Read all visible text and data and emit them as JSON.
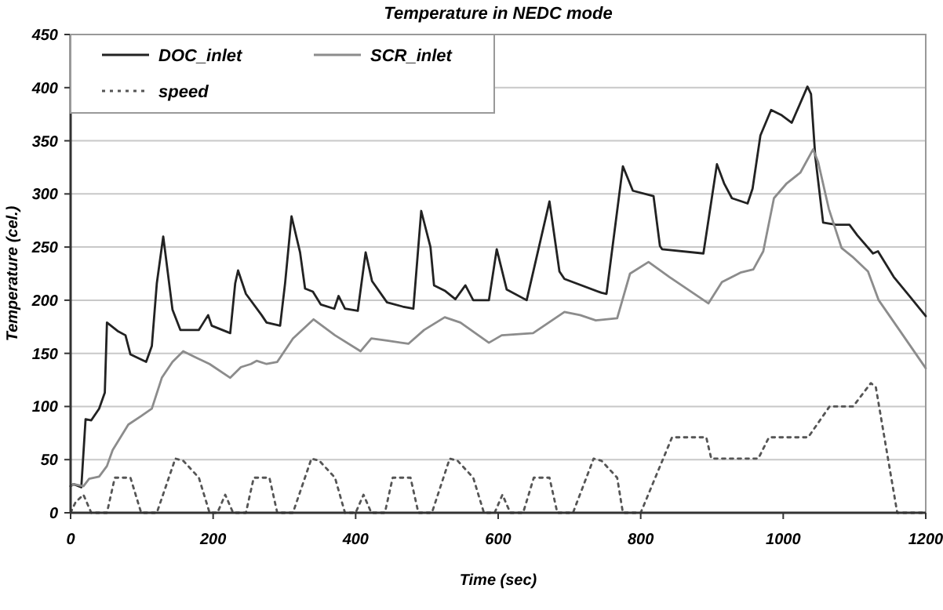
{
  "chart_data": {
    "type": "line",
    "title": "Temperature in NEDC mode",
    "xlabel": "Time (sec)",
    "ylabel": "Temperature (cel.)",
    "xlim": [
      0,
      1200
    ],
    "xticks": [
      0,
      200,
      400,
      600,
      800,
      1000,
      1200
    ],
    "ylim": [
      0,
      450
    ],
    "yticks": [
      0,
      50,
      100,
      150,
      200,
      250,
      300,
      350,
      400,
      450
    ],
    "grid": "y",
    "legend": "top left",
    "marker": "none",
    "series": [
      {
        "name": "DOC_inlet",
        "color": "#222222",
        "line_style": "solid",
        "x": [
          0,
          4,
          15,
          21,
          29,
          40,
          48,
          51,
          66,
          77,
          84,
          106,
          114,
          121,
          130,
          143,
          154,
          180,
          193,
          198,
          224,
          231,
          235,
          246,
          268,
          275,
          294,
          301,
          310,
          322,
          329,
          340,
          351,
          370,
          376,
          385,
          403,
          414,
          423,
          444,
          466,
          481,
          492,
          505,
          510,
          525,
          540,
          554,
          565,
          587,
          598,
          612,
          640,
          672,
          686,
          693,
          745,
          752,
          775,
          789,
          818,
          827,
          830,
          888,
          907,
          917,
          928,
          950,
          957,
          968,
          983,
          998,
          1012,
          1034,
          1039,
          1045,
          1056,
          1074,
          1093,
          1104,
          1126,
          1133,
          1155,
          1177,
          1200
        ],
        "values": [
          25,
          27,
          24,
          88,
          87,
          98,
          113,
          179,
          171,
          167,
          149,
          142,
          157,
          216,
          260,
          191,
          172,
          172,
          186,
          176,
          169,
          216,
          228,
          206,
          186,
          179,
          176,
          216,
          279,
          245,
          211,
          208,
          196,
          192,
          204,
          192,
          190,
          245,
          218,
          198,
          194,
          192,
          284,
          250,
          214,
          209,
          201,
          214,
          200,
          200,
          248,
          210,
          200,
          293,
          227,
          220,
          207,
          206,
          326,
          303,
          298,
          251,
          248,
          244,
          328,
          310,
          296,
          291,
          305,
          355,
          379,
          374,
          367,
          401,
          394,
          335,
          273,
          271,
          271,
          261,
          244,
          246,
          222,
          204,
          185
        ]
      },
      {
        "name": "SCR_inlet",
        "color": "#8c8c8c",
        "line_style": "solid",
        "x": [
          0,
          4,
          18,
          26,
          40,
          51,
          59,
          81,
          99,
          114,
          128,
          143,
          158,
          173,
          195,
          224,
          239,
          253,
          261,
          275,
          290,
          312,
          341,
          371,
          407,
          422,
          444,
          474,
          496,
          525,
          547,
          587,
          605,
          649,
          693,
          715,
          737,
          767,
          785,
          811,
          840,
          895,
          914,
          940,
          958,
          972,
          987,
          1005,
          1024,
          1042,
          1049,
          1064,
          1082,
          1097,
          1119,
          1134,
          1163,
          1200
        ],
        "values": [
          25,
          27,
          25,
          32,
          34,
          44,
          59,
          83,
          91,
          98,
          127,
          142,
          152,
          147,
          140,
          127,
          137,
          140,
          143,
          140,
          142,
          164,
          182,
          167,
          152,
          164,
          162,
          159,
          172,
          184,
          179,
          160,
          167,
          169,
          189,
          186,
          181,
          183,
          225,
          236,
          222,
          197,
          217,
          226,
          229,
          246,
          296,
          310,
          320,
          342,
          330,
          286,
          249,
          241,
          227,
          200,
          172,
          136
        ]
      },
      {
        "name": "speed",
        "color": "#555555",
        "line_style": "dotted",
        "x": [
          0,
          7,
          18,
          29,
          51,
          62,
          84,
          99,
          121,
          147,
          158,
          180,
          195,
          206,
          217,
          228,
          246,
          257,
          279,
          290,
          312,
          338,
          349,
          371,
          385,
          400,
          411,
          422,
          441,
          452,
          477,
          488,
          507,
          532,
          543,
          565,
          580,
          595,
          606,
          617,
          635,
          650,
          672,
          683,
          705,
          734,
          745,
          767,
          775,
          800,
          844,
          892,
          899,
          965,
          980,
          1035,
          1065,
          1098,
          1123,
          1130,
          1160,
          1200
        ],
        "values": [
          0,
          10,
          17,
          0,
          0,
          33,
          33,
          0,
          0,
          51,
          49,
          33,
          0,
          0,
          17,
          0,
          0,
          33,
          33,
          0,
          0,
          51,
          49,
          33,
          0,
          0,
          17,
          0,
          0,
          33,
          33,
          0,
          0,
          51,
          49,
          33,
          0,
          0,
          17,
          0,
          0,
          33,
          33,
          0,
          0,
          51,
          49,
          33,
          0,
          0,
          71,
          71,
          51,
          51,
          71,
          71,
          100,
          100,
          122,
          118,
          0,
          0
        ]
      }
    ]
  }
}
